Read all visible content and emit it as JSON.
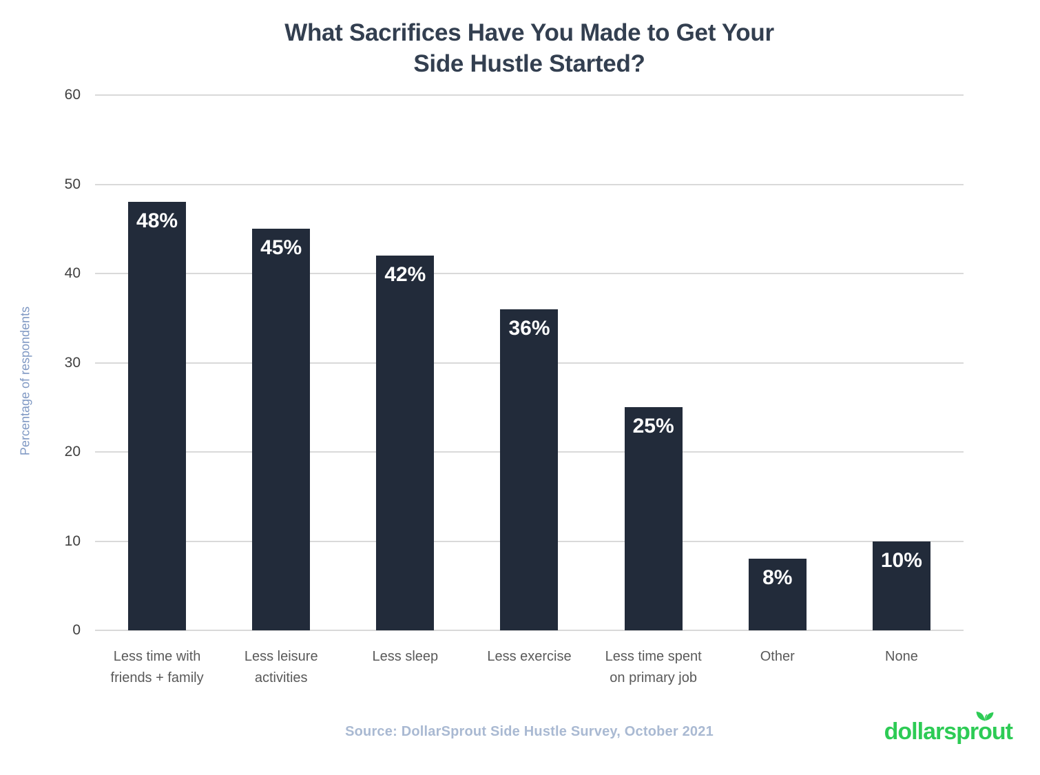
{
  "title": {
    "text": "What Sacrifices Have You Made to Get Your\nSide Hustle Started?"
  },
  "chart_data": {
    "type": "bar",
    "title": "What Sacrifices Have You Made to Get Your Side Hustle Started?",
    "categories": [
      "Less time with\nfriends + family",
      "Less leisure\nactivities",
      "Less sleep",
      "Less exercise",
      "Less time spent\non primary job",
      "Other",
      "None"
    ],
    "values": [
      48,
      45,
      42,
      36,
      25,
      8,
      10
    ],
    "bar_labels": [
      "48%",
      "45%",
      "42%",
      "36%",
      "25%",
      "8%",
      "10%"
    ],
    "xlabel": "",
    "ylabel": "Percentage of respondents",
    "ylim": [
      0,
      60
    ],
    "yticks": [
      0,
      10,
      20,
      30,
      40,
      50,
      60
    ],
    "grid": true,
    "legend_position": "none",
    "bar_color": "#222B3A",
    "bar_label_color": "#FFFFFF"
  },
  "source": {
    "text": "Source: DollarSprout Side Hustle Survey, October 2021"
  },
  "logo": {
    "prefix": "dollarspr",
    "o": "o",
    "suffix": "ut",
    "full_text": "dollarsprout",
    "color": "#2DCB55"
  },
  "colors": {
    "title": "#333F50",
    "tick_labels": "#404040",
    "category_labels": "#595959",
    "y_axis_title": "#7F98C3",
    "source": "#A9B9D2",
    "gridlines": "#D9D9D9",
    "background": "#FFFFFF"
  }
}
